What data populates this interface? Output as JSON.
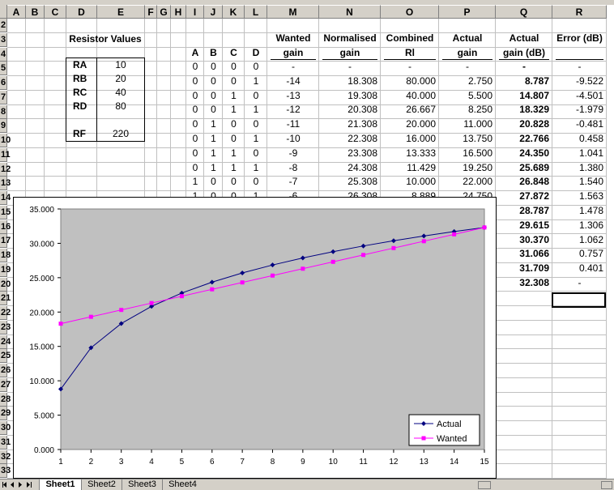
{
  "columns": [
    "A",
    "B",
    "C",
    "D",
    "E",
    "F",
    "G",
    "H",
    "I",
    "J",
    "K",
    "L",
    "M",
    "N",
    "O",
    "P",
    "Q",
    "R"
  ],
  "rows": [
    "2",
    "3",
    "4",
    "5",
    "6",
    "7",
    "8",
    "9",
    "10",
    "11",
    "12",
    "13",
    "14",
    "15",
    "16",
    "17",
    "18",
    "19",
    "20",
    "21",
    "22",
    "23",
    "24",
    "25",
    "26",
    "27",
    "28",
    "29",
    "30",
    "31",
    "32",
    "33"
  ],
  "resistor": {
    "title": "Resistor Values",
    "items": [
      {
        "name": "RA",
        "value": "10"
      },
      {
        "name": "RB",
        "value": "20"
      },
      {
        "name": "RC",
        "value": "40"
      },
      {
        "name": "RD",
        "value": "80"
      },
      {
        "name": "",
        "value": ""
      },
      {
        "name": "RF",
        "value": "220"
      }
    ]
  },
  "table": {
    "headers_top": [
      "",
      "",
      "",
      "",
      "Wanted",
      "Normalised",
      "Combined",
      "Actual",
      "Actual",
      "Error (dB)"
    ],
    "headers_bottom": [
      "A",
      "B",
      "C",
      "D",
      "gain",
      "gain",
      "Rl",
      "gain",
      "gain (dB)",
      ""
    ],
    "rows": [
      [
        "0",
        "0",
        "0",
        "0",
        "-",
        "-",
        "-",
        "-",
        "-",
        "-"
      ],
      [
        "0",
        "0",
        "0",
        "1",
        "-14",
        "18.308",
        "80.000",
        "2.750",
        "8.787",
        "-9.522"
      ],
      [
        "0",
        "0",
        "1",
        "0",
        "-13",
        "19.308",
        "40.000",
        "5.500",
        "14.807",
        "-4.501"
      ],
      [
        "0",
        "0",
        "1",
        "1",
        "-12",
        "20.308",
        "26.667",
        "8.250",
        "18.329",
        "-1.979"
      ],
      [
        "0",
        "1",
        "0",
        "0",
        "-11",
        "21.308",
        "20.000",
        "11.000",
        "20.828",
        "-0.481"
      ],
      [
        "0",
        "1",
        "0",
        "1",
        "-10",
        "22.308",
        "16.000",
        "13.750",
        "22.766",
        "0.458"
      ],
      [
        "0",
        "1",
        "1",
        "0",
        "-9",
        "23.308",
        "13.333",
        "16.500",
        "24.350",
        "1.041"
      ],
      [
        "0",
        "1",
        "1",
        "1",
        "-8",
        "24.308",
        "11.429",
        "19.250",
        "25.689",
        "1.380"
      ],
      [
        "1",
        "0",
        "0",
        "0",
        "-7",
        "25.308",
        "10.000",
        "22.000",
        "26.848",
        "1.540"
      ],
      [
        "1",
        "0",
        "0",
        "1",
        "-6",
        "26.308",
        "8.889",
        "24.750",
        "27.872",
        "1.563"
      ]
    ],
    "extra_rows": [
      [
        "28.787",
        "1.478"
      ],
      [
        "29.615",
        "1.306"
      ],
      [
        "30.370",
        "1.062"
      ],
      [
        "31.066",
        "0.757"
      ],
      [
        "31.709",
        "0.401"
      ],
      [
        "32.308",
        "-"
      ]
    ]
  },
  "chart_data": {
    "type": "line",
    "x": [
      1,
      2,
      3,
      4,
      5,
      6,
      7,
      8,
      9,
      10,
      11,
      12,
      13,
      14,
      15
    ],
    "series": [
      {
        "name": "Actual",
        "color": "#000080",
        "marker": "diamond",
        "values": [
          8.787,
          14.807,
          18.329,
          20.828,
          22.766,
          24.35,
          25.689,
          26.848,
          27.872,
          28.787,
          29.615,
          30.37,
          31.066,
          31.709,
          32.308
        ]
      },
      {
        "name": "Wanted",
        "color": "#ff00ff",
        "marker": "square",
        "values": [
          18.308,
          19.308,
          20.308,
          21.308,
          22.308,
          23.308,
          24.308,
          25.308,
          26.308,
          27.308,
          28.308,
          29.308,
          30.308,
          31.308,
          32.308
        ]
      }
    ],
    "ylim": [
      0,
      35
    ],
    "yticks": [
      "0.000",
      "5.000",
      "10.000",
      "15.000",
      "20.000",
      "25.000",
      "30.000",
      "35.000"
    ],
    "xticks": [
      "1",
      "2",
      "3",
      "4",
      "5",
      "6",
      "7",
      "8",
      "9",
      "10",
      "11",
      "12",
      "13",
      "14",
      "15"
    ],
    "plot_background": "#c0c0c0",
    "legend_position": "bottom-right"
  },
  "tabs": [
    "Sheet1",
    "Sheet2",
    "Sheet3",
    "Sheet4"
  ],
  "active_tab": "Sheet1"
}
